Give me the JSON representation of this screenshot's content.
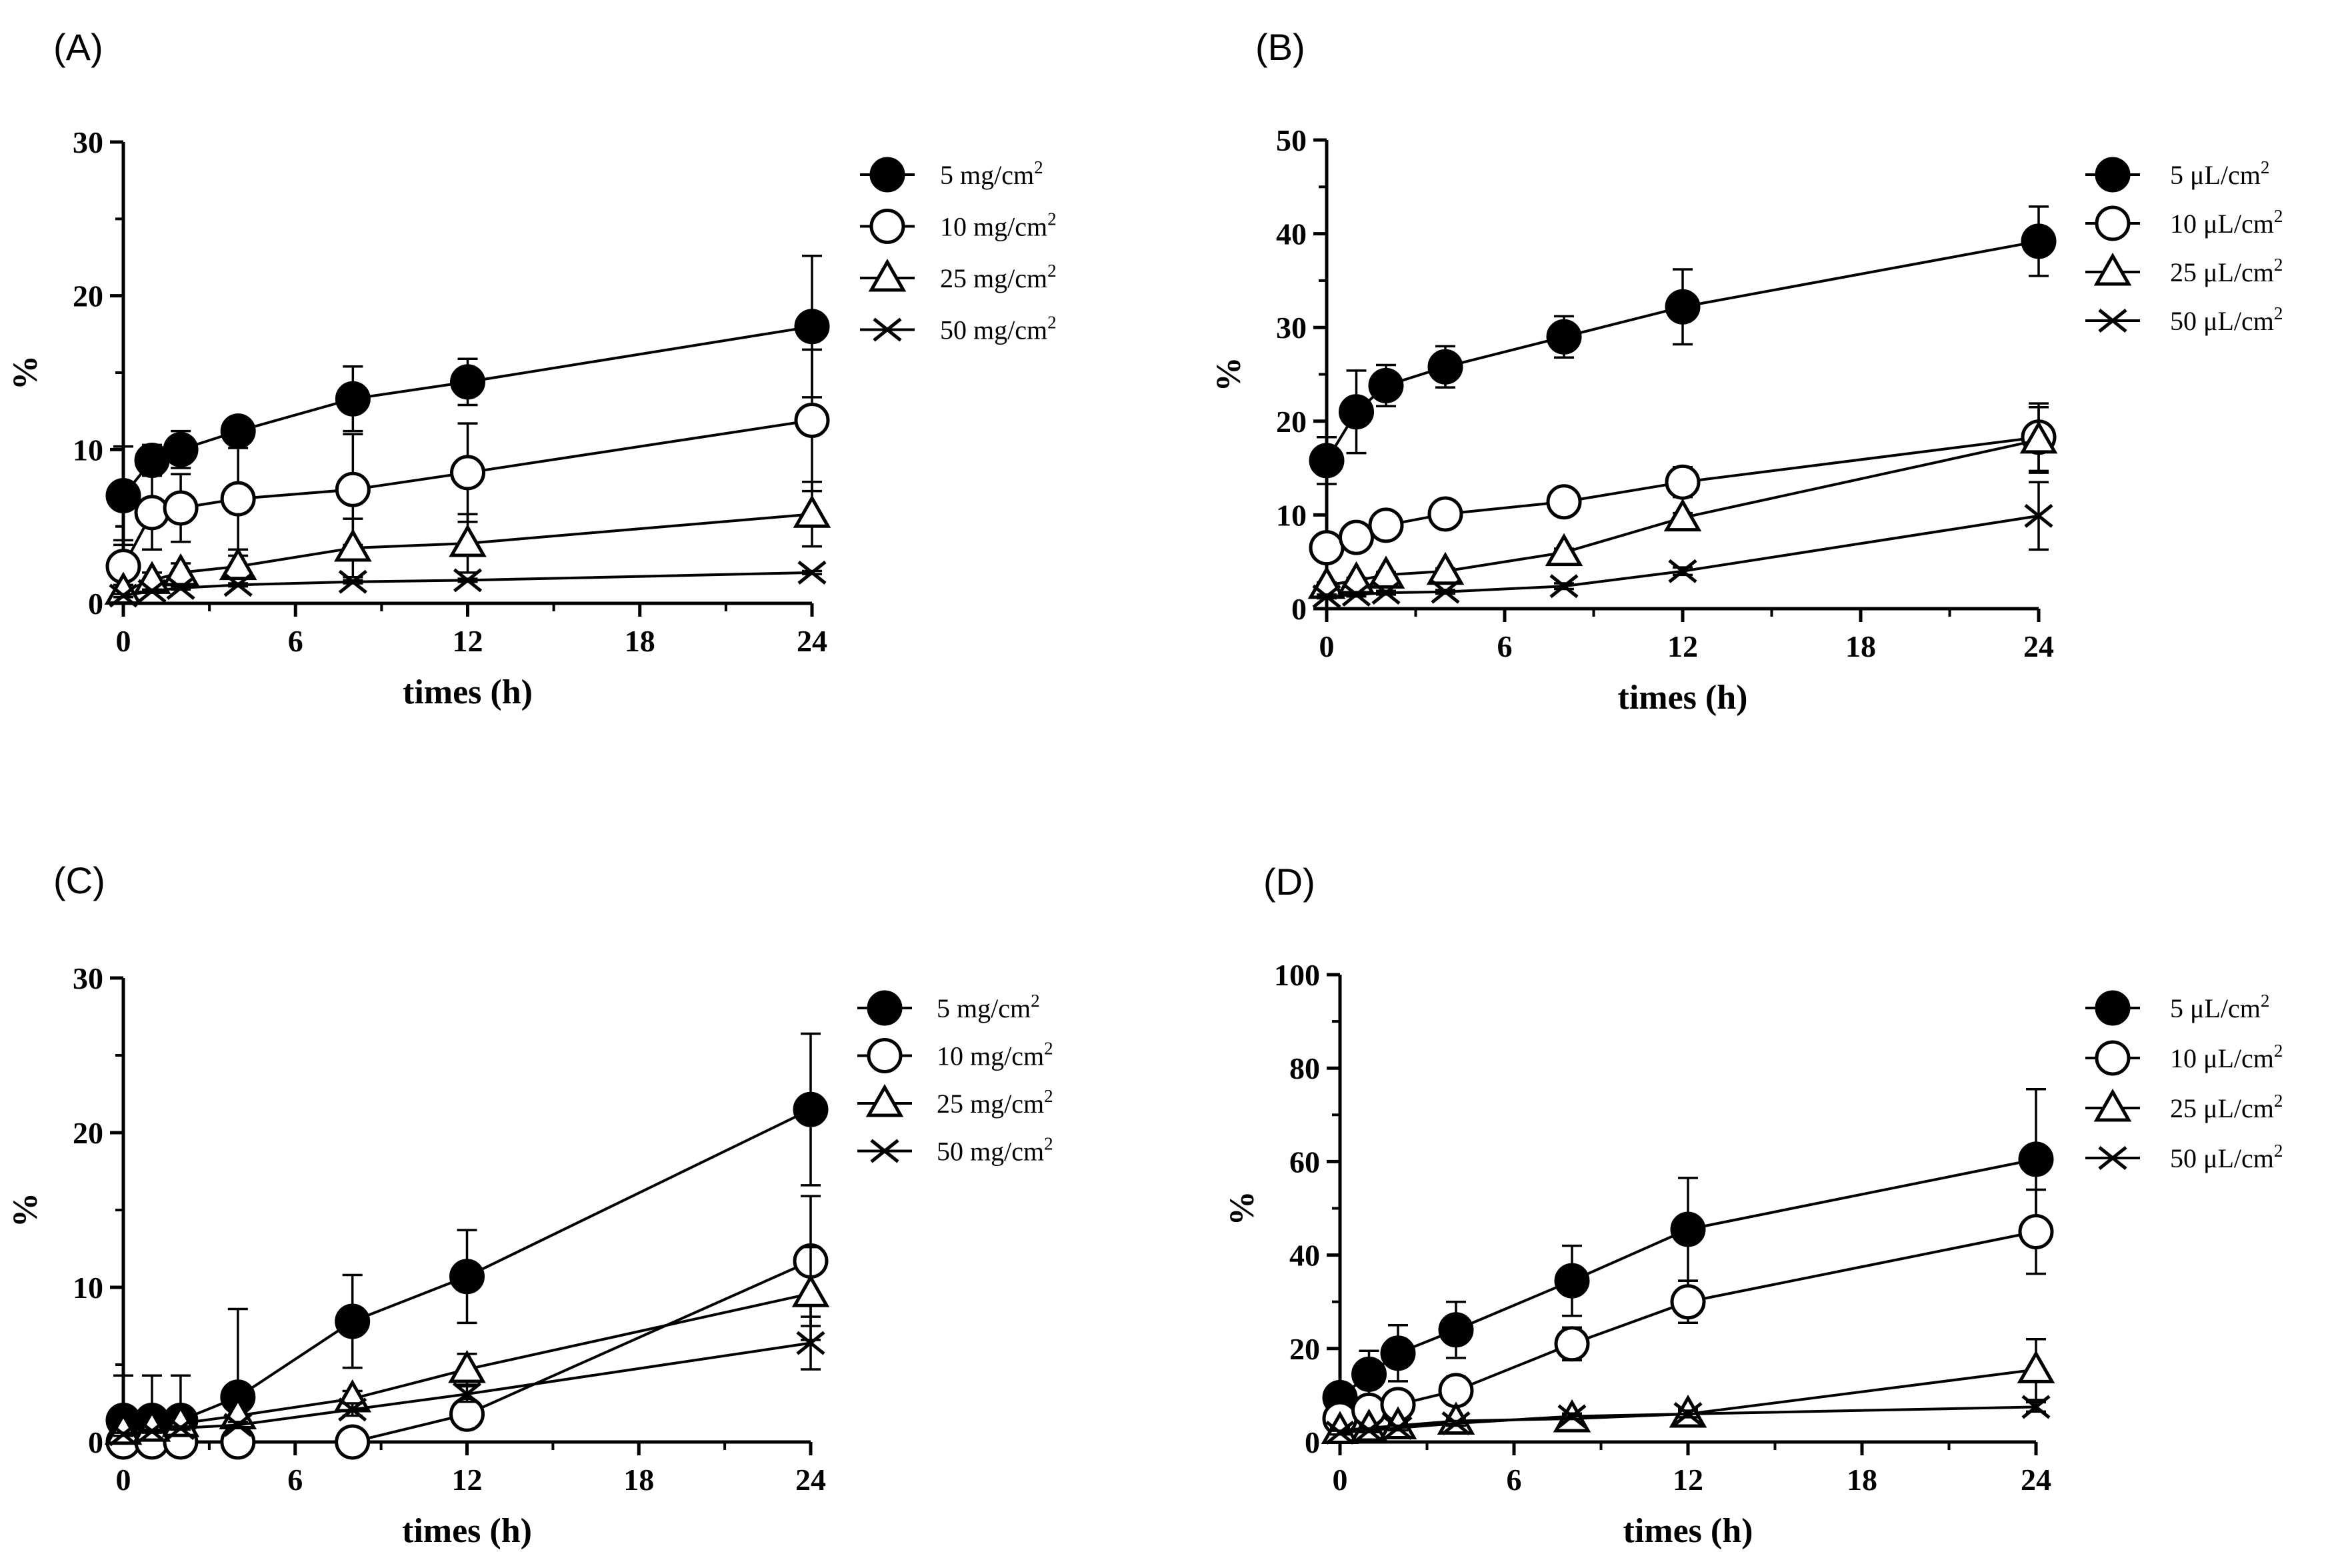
{
  "chart_data": [
    {
      "panel": "(A)",
      "type": "line",
      "xlabel": "times (h)",
      "ylabel": "%",
      "xlim": [
        0,
        24
      ],
      "ylim": [
        0,
        30
      ],
      "xticks": [
        "0",
        "6",
        "12",
        "18",
        "24"
      ],
      "yticks": [
        "0",
        "10",
        "20",
        "30"
      ],
      "x": [
        0,
        1,
        2,
        4,
        8,
        12,
        24
      ],
      "legend_position": "right",
      "series": [
        {
          "name": "5 mg/cm",
          "sup": "2",
          "marker": "filled-circle",
          "values": [
            7.0,
            9.3,
            10.0,
            11.2,
            13.3,
            14.4,
            18.0
          ],
          "errors": [
            3.2,
            1.0,
            1.2,
            0.8,
            2.1,
            1.5,
            4.6
          ]
        },
        {
          "name": "10 mg/cm",
          "sup": "2",
          "marker": "open-circle",
          "values": [
            2.4,
            5.9,
            6.2,
            6.8,
            7.4,
            8.5,
            11.9
          ],
          "errors": [
            1.7,
            2.4,
            2.2,
            3.3,
            3.6,
            3.2,
            4.6
          ]
        },
        {
          "name": "25 mg/cm",
          "sup": "2",
          "marker": "open-triangle",
          "values": [
            0.8,
            1.5,
            2.0,
            2.4,
            3.6,
            3.9,
            5.8
          ],
          "errors": [
            0.4,
            0.5,
            0.6,
            0.7,
            1.9,
            1.9,
            2.1
          ]
        },
        {
          "name": "50 mg/cm",
          "sup": "2",
          "marker": "cross",
          "values": [
            0.5,
            0.8,
            1.0,
            1.2,
            1.4,
            1.5,
            2.0
          ],
          "errors": [
            0.1,
            0.1,
            0.1,
            0.1,
            0.1,
            0.1,
            0.1
          ]
        }
      ]
    },
    {
      "panel": "(B)",
      "type": "line",
      "xlabel": "times (h)",
      "ylabel": "%",
      "xlim": [
        0,
        24
      ],
      "ylim": [
        0,
        50
      ],
      "xticks": [
        "0",
        "6",
        "12",
        "18",
        "24"
      ],
      "yticks": [
        "0",
        "10",
        "20",
        "30",
        "40",
        "50"
      ],
      "x": [
        0,
        1,
        2,
        4,
        8,
        12,
        24
      ],
      "legend_position": "right",
      "series": [
        {
          "name": "5 μL/cm",
          "sup": "2",
          "marker": "filled-circle",
          "values": [
            15.8,
            21.0,
            23.8,
            25.8,
            29.0,
            32.2,
            39.2
          ],
          "errors": [
            2.5,
            4.4,
            2.2,
            2.2,
            2.2,
            4.0,
            3.7
          ]
        },
        {
          "name": "10 μL/cm",
          "sup": "2",
          "marker": "open-circle",
          "values": [
            6.5,
            7.6,
            8.9,
            10.1,
            11.4,
            13.5,
            18.3
          ],
          "errors": [
            0.3,
            0.4,
            0.4,
            0.4,
            1.3,
            1.6,
            3.6
          ]
        },
        {
          "name": "25 μL/cm",
          "sup": "2",
          "marker": "open-triangle",
          "values": [
            2.5,
            3.0,
            3.6,
            4.0,
            6.0,
            9.7,
            18.0
          ],
          "errors": [
            0.3,
            0.3,
            0.3,
            0.3,
            0.4,
            0.5,
            3.5
          ]
        },
        {
          "name": "50 μL/cm",
          "sup": "2",
          "marker": "cross",
          "values": [
            1.3,
            1.5,
            1.7,
            1.8,
            2.4,
            4.0,
            9.9
          ],
          "errors": [
            0.2,
            0.2,
            0.2,
            0.2,
            0.3,
            0.4,
            3.6
          ]
        }
      ]
    },
    {
      "panel": "(C)",
      "type": "line",
      "xlabel": "times (h)",
      "ylabel": "%",
      "xlim": [
        0,
        24
      ],
      "ylim": [
        0,
        30
      ],
      "xticks": [
        "0",
        "6",
        "12",
        "18",
        "24"
      ],
      "yticks": [
        "0",
        "10",
        "20",
        "30"
      ],
      "x": [
        0,
        1,
        2,
        4,
        8,
        12,
        24
      ],
      "legend_position": "right",
      "series": [
        {
          "name": "5 mg/cm",
          "sup": "2",
          "marker": "filled-circle",
          "values": [
            1.4,
            1.4,
            1.4,
            2.9,
            7.8,
            10.7,
            21.5
          ],
          "errors": [
            2.9,
            2.9,
            2.9,
            5.7,
            3.0,
            3.0,
            4.9
          ]
        },
        {
          "name": "10 mg/cm",
          "sup": "2",
          "marker": "open-circle",
          "values": [
            0.0,
            0.0,
            0.0,
            0.0,
            0.0,
            1.8,
            11.7
          ],
          "errors": [
            0,
            0,
            0,
            0,
            0,
            0.4,
            4.2
          ]
        },
        {
          "name": "25 mg/cm",
          "sup": "2",
          "marker": "open-triangle",
          "values": [
            0.7,
            0.9,
            1.2,
            1.7,
            2.8,
            4.7,
            9.6
          ],
          "errors": [
            0.2,
            0.2,
            0.2,
            0.3,
            0.5,
            1.0,
            3.0
          ]
        },
        {
          "name": "50 mg/cm",
          "sup": "2",
          "marker": "cross",
          "values": [
            0.5,
            0.7,
            0.9,
            1.1,
            2.1,
            3.1,
            6.4
          ],
          "errors": [
            0.1,
            0.1,
            0.1,
            0.2,
            0.4,
            0.5,
            1.7
          ]
        }
      ]
    },
    {
      "panel": "(D)",
      "type": "line",
      "xlabel": "times (h)",
      "ylabel": "%",
      "xlim": [
        0,
        24
      ],
      "ylim": [
        0,
        100
      ],
      "xticks": [
        "0",
        "6",
        "12",
        "18",
        "24"
      ],
      "yticks": [
        "0",
        "20",
        "40",
        "60",
        "80",
        "100"
      ],
      "x": [
        0,
        1,
        2,
        4,
        8,
        12,
        24
      ],
      "legend_position": "right",
      "series": [
        {
          "name": "5 μL/cm",
          "sup": "2",
          "marker": "filled-circle",
          "values": [
            9.5,
            14.5,
            19.0,
            24.0,
            34.5,
            45.5,
            60.5
          ],
          "errors": [
            2.0,
            5.0,
            6.0,
            6.0,
            7.5,
            11.0,
            15.0
          ]
        },
        {
          "name": "10 μL/cm",
          "sup": "2",
          "marker": "open-circle",
          "values": [
            5.0,
            6.8,
            8.0,
            11.0,
            21.0,
            30.0,
            45.0
          ],
          "errors": [
            1.0,
            1.5,
            2.0,
            3.0,
            3.5,
            4.5,
            9.0
          ]
        },
        {
          "name": "25 μL/cm",
          "sup": "2",
          "marker": "open-triangle",
          "values": [
            2.5,
            3.0,
            3.5,
            4.5,
            5.0,
            6.0,
            15.5
          ],
          "errors": [
            0.5,
            0.5,
            0.5,
            0.8,
            0.8,
            1.0,
            6.5
          ]
        },
        {
          "name": "50 μL/cm",
          "sup": "2",
          "marker": "cross",
          "values": [
            2.0,
            2.5,
            3.0,
            4.0,
            5.5,
            6.0,
            7.5
          ],
          "errors": [
            0.4,
            0.4,
            0.5,
            0.5,
            0.6,
            0.7,
            1.0
          ]
        }
      ]
    }
  ]
}
